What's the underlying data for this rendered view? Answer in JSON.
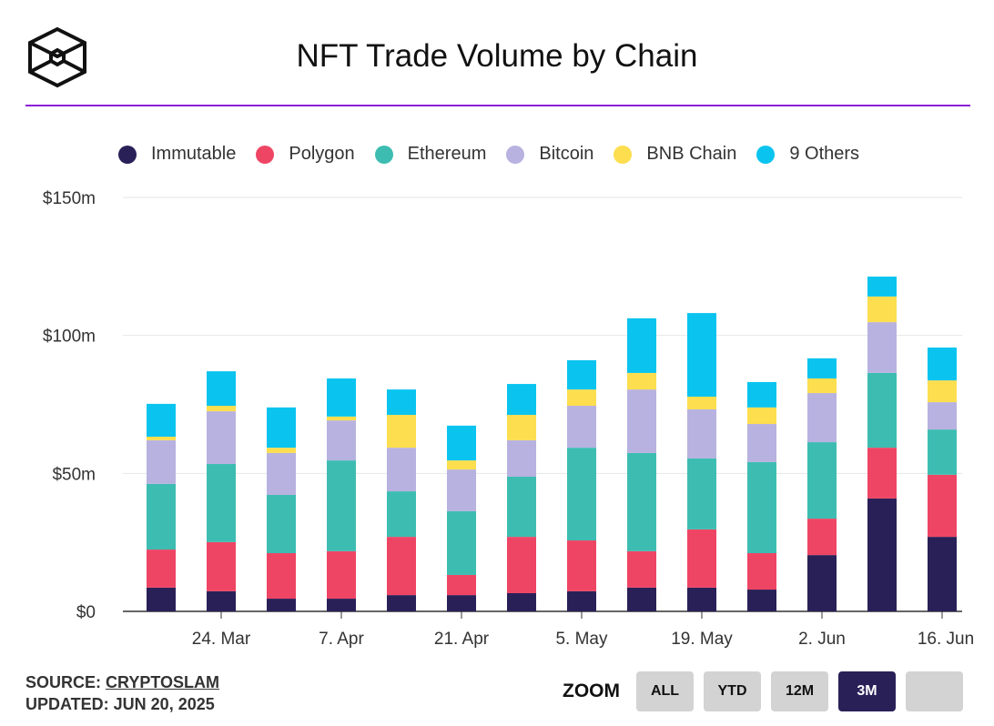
{
  "title": "NFT Trade Volume by Chain",
  "source_label": "SOURCE:",
  "source_link": "CRYPTOSLAM",
  "updated": "UPDATED: JUN 20, 2025",
  "zoom": {
    "label": "ZOOM",
    "buttons": [
      "ALL",
      "YTD",
      "12M",
      "3M",
      ""
    ],
    "active": "3M"
  },
  "chart_data": {
    "type": "bar",
    "stacked": true,
    "title": "NFT Trade Volume by Chain",
    "ylim": [
      0,
      150
    ],
    "yticks": [
      {
        "v": 0,
        "label": "$0"
      },
      {
        "v": 50,
        "label": "$50m"
      },
      {
        "v": 100,
        "label": "$100m"
      },
      {
        "v": 150,
        "label": "$150m"
      }
    ],
    "xtick_labels": [
      {
        "i": 1,
        "label": "24. Mar"
      },
      {
        "i": 3,
        "label": "7. Apr"
      },
      {
        "i": 5,
        "label": "21. Apr"
      },
      {
        "i": 7,
        "label": "5. May"
      },
      {
        "i": 9,
        "label": "19. May"
      },
      {
        "i": 11,
        "label": "2. Jun"
      },
      {
        "i": 13,
        "label": "16. Jun"
      }
    ],
    "legend_placement": "top",
    "series": [
      {
        "name": "Immutable",
        "color": "#2a2058",
        "values": [
          8.6,
          7.3,
          4.6,
          4.6,
          5.9,
          5.9,
          6.6,
          7.3,
          8.6,
          8.6,
          7.9,
          20.4,
          40.9,
          27
        ]
      },
      {
        "name": "Polygon",
        "color": "#ef4565",
        "values": [
          13.8,
          17.8,
          16.5,
          17.2,
          21.1,
          7.3,
          20.4,
          18.4,
          13.2,
          21.1,
          13.2,
          13.2,
          18.4,
          22.5
        ]
      },
      {
        "name": "Ethereum",
        "color": "#3dbdb1",
        "values": [
          23.8,
          28.3,
          21.1,
          32.9,
          16.5,
          23.1,
          21.8,
          33.6,
          35.6,
          25.7,
          33,
          27.7,
          27.1,
          16.4
        ]
      },
      {
        "name": "Bitcoin",
        "color": "#b8b2e0",
        "values": [
          15.8,
          19.1,
          15.2,
          14.5,
          15.8,
          15.1,
          13.2,
          15.2,
          23,
          17.8,
          13.8,
          17.8,
          18.4,
          9.9
        ]
      },
      {
        "name": "BNB Chain",
        "color": "#fcde4f",
        "values": [
          1.3,
          2,
          1.9,
          1.4,
          11.9,
          3.3,
          9.2,
          5.9,
          6,
          4.6,
          6,
          5.3,
          9.3,
          7.9
        ]
      },
      {
        "name": "9 Others",
        "color": "#0ac4ef",
        "values": [
          11.9,
          12.5,
          14.6,
          13.8,
          9.2,
          12.6,
          11.2,
          10.6,
          19.8,
          30.3,
          9.2,
          7.3,
          7.2,
          11.9
        ]
      }
    ]
  }
}
